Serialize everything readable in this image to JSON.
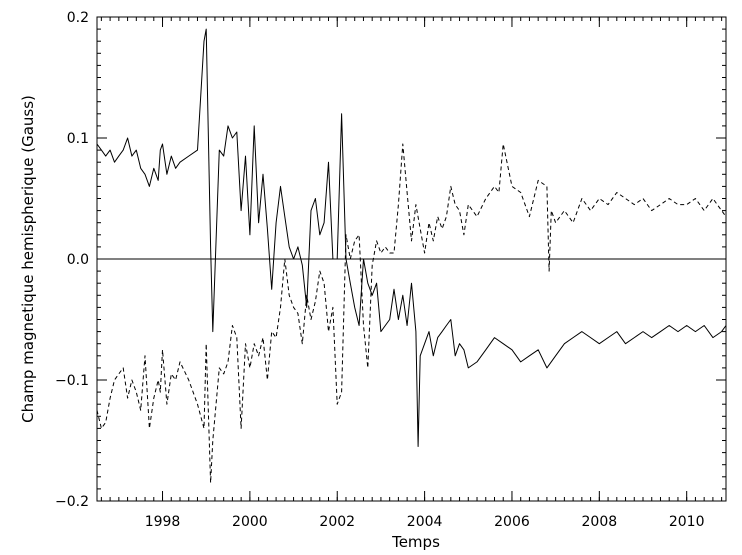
{
  "chart_data": {
    "type": "line",
    "title": "",
    "xlabel": "Temps",
    "ylabel": "Champ magnetique hemispherique (Gauss)",
    "xlim": [
      1996.5,
      2010.9
    ],
    "ylim": [
      -0.2,
      0.2
    ],
    "x_ticks": [
      1998,
      2000,
      2002,
      2004,
      2006,
      2008,
      2010
    ],
    "x_tick_labels": [
      "1998",
      "2000",
      "2002",
      "2004",
      "2006",
      "2008",
      "2010"
    ],
    "y_ticks": [
      -0.2,
      -0.1,
      0.0,
      0.1,
      0.2
    ],
    "y_tick_labels": [
      "−0.2",
      "−0.1",
      "0.0",
      "0.1",
      "0.2"
    ],
    "zero_line": 0.0,
    "legend": "none",
    "grid": false,
    "series": [
      {
        "style": "solid",
        "x": [
          1996.5,
          1996.6,
          1996.7,
          1996.8,
          1996.9,
          1997.0,
          1997.1,
          1997.2,
          1997.3,
          1997.4,
          1997.5,
          1997.6,
          1997.7,
          1997.8,
          1997.9,
          1997.95,
          1998.0,
          1998.1,
          1998.2,
          1998.3,
          1998.4,
          1998.6,
          1998.8,
          1998.95,
          1999.0,
          1999.1,
          1999.15,
          1999.3,
          1999.4,
          1999.5,
          1999.6,
          1999.7,
          1999.8,
          1999.9,
          2000.0,
          2000.1,
          2000.2,
          2000.3,
          2000.4,
          2000.5,
          2000.6,
          2000.7,
          2000.8,
          2000.9,
          2001.0,
          2001.1,
          2001.2,
          2001.3,
          2001.4,
          2001.5,
          2001.6,
          2001.7,
          2001.8,
          2001.9,
          2002.0,
          2002.1,
          2002.2,
          2002.3,
          2002.4,
          2002.5,
          2002.6,
          2002.7,
          2002.8,
          2002.9,
          2003.0,
          2003.1,
          2003.2,
          2003.3,
          2003.4,
          2003.5,
          2003.6,
          2003.7,
          2003.8,
          2003.85,
          2003.9,
          2004.0,
          2004.1,
          2004.2,
          2004.3,
          2004.4,
          2004.5,
          2004.6,
          2004.7,
          2004.8,
          2004.9,
          2005.0,
          2005.2,
          2005.4,
          2005.6,
          2005.8,
          2006.0,
          2006.2,
          2006.4,
          2006.6,
          2006.8,
          2007.0,
          2007.2,
          2007.4,
          2007.6,
          2007.8,
          2008.0,
          2008.2,
          2008.4,
          2008.6,
          2008.8,
          2009.0,
          2009.2,
          2009.4,
          2009.6,
          2009.8,
          2010.0,
          2010.2,
          2010.4,
          2010.6,
          2010.8,
          2010.9
        ],
        "values": [
          0.095,
          0.09,
          0.085,
          0.09,
          0.08,
          0.085,
          0.09,
          0.1,
          0.085,
          0.09,
          0.075,
          0.07,
          0.06,
          0.075,
          0.065,
          0.09,
          0.095,
          0.07,
          0.085,
          0.075,
          0.08,
          0.085,
          0.09,
          0.18,
          0.19,
          0.01,
          -0.06,
          0.09,
          0.085,
          0.11,
          0.1,
          0.105,
          0.04,
          0.085,
          0.02,
          0.11,
          0.03,
          0.07,
          0.025,
          -0.025,
          0.03,
          0.06,
          0.035,
          0.01,
          0.0,
          0.01,
          -0.005,
          -0.04,
          0.04,
          0.05,
          0.02,
          0.03,
          0.08,
          0.0,
          0.0,
          0.12,
          0.0,
          -0.02,
          -0.04,
          -0.055,
          0.0,
          -0.02,
          -0.03,
          -0.02,
          -0.06,
          -0.055,
          -0.05,
          -0.025,
          -0.05,
          -0.03,
          -0.055,
          -0.02,
          -0.06,
          -0.155,
          -0.08,
          -0.07,
          -0.06,
          -0.08,
          -0.065,
          -0.06,
          -0.055,
          -0.05,
          -0.08,
          -0.07,
          -0.075,
          -0.09,
          -0.085,
          -0.075,
          -0.065,
          -0.07,
          -0.075,
          -0.085,
          -0.08,
          -0.075,
          -0.09,
          -0.08,
          -0.07,
          -0.065,
          -0.06,
          -0.065,
          -0.07,
          -0.065,
          -0.06,
          -0.07,
          -0.065,
          -0.06,
          -0.065,
          -0.06,
          -0.055,
          -0.06,
          -0.055,
          -0.06,
          -0.055,
          -0.065,
          -0.06,
          -0.055
        ]
      },
      {
        "style": "dashed",
        "x": [
          1996.5,
          1996.6,
          1996.7,
          1996.8,
          1996.9,
          1997.0,
          1997.1,
          1997.2,
          1997.3,
          1997.4,
          1997.5,
          1997.6,
          1997.7,
          1997.8,
          1997.9,
          1997.95,
          1998.0,
          1998.1,
          1998.2,
          1998.3,
          1998.4,
          1998.6,
          1998.8,
          1998.95,
          1999.0,
          1999.1,
          1999.15,
          1999.3,
          1999.4,
          1999.5,
          1999.6,
          1999.7,
          1999.8,
          1999.9,
          2000.0,
          2000.1,
          2000.2,
          2000.3,
          2000.4,
          2000.5,
          2000.6,
          2000.7,
          2000.8,
          2000.9,
          2001.0,
          2001.1,
          2001.2,
          2001.3,
          2001.4,
          2001.5,
          2001.6,
          2001.7,
          2001.8,
          2001.9,
          2002.0,
          2002.1,
          2002.2,
          2002.3,
          2002.4,
          2002.5,
          2002.6,
          2002.7,
          2002.8,
          2002.9,
          2003.0,
          2003.1,
          2003.2,
          2003.3,
          2003.4,
          2003.5,
          2003.6,
          2003.7,
          2003.8,
          2003.9,
          2004.0,
          2004.1,
          2004.2,
          2004.3,
          2004.4,
          2004.5,
          2004.6,
          2004.7,
          2004.8,
          2004.9,
          2005.0,
          2005.2,
          2005.4,
          2005.6,
          2005.7,
          2005.8,
          2006.0,
          2006.2,
          2006.4,
          2006.6,
          2006.8,
          2006.85,
          2006.9,
          2007.0,
          2007.2,
          2007.4,
          2007.6,
          2007.8,
          2008.0,
          2008.2,
          2008.4,
          2008.6,
          2008.8,
          2009.0,
          2009.2,
          2009.4,
          2009.6,
          2009.8,
          2010.0,
          2010.2,
          2010.4,
          2010.6,
          2010.8,
          2010.9
        ],
        "values": [
          -0.125,
          -0.14,
          -0.135,
          -0.115,
          -0.1,
          -0.095,
          -0.09,
          -0.115,
          -0.1,
          -0.11,
          -0.125,
          -0.08,
          -0.14,
          -0.115,
          -0.1,
          -0.11,
          -0.075,
          -0.12,
          -0.095,
          -0.1,
          -0.085,
          -0.1,
          -0.12,
          -0.14,
          -0.07,
          -0.185,
          -0.15,
          -0.09,
          -0.095,
          -0.085,
          -0.055,
          -0.065,
          -0.14,
          -0.07,
          -0.09,
          -0.07,
          -0.08,
          -0.065,
          -0.1,
          -0.06,
          -0.065,
          -0.04,
          0.0,
          -0.03,
          -0.04,
          -0.045,
          -0.07,
          -0.03,
          -0.05,
          -0.035,
          -0.01,
          -0.02,
          -0.06,
          -0.04,
          -0.12,
          -0.11,
          0.02,
          0.0,
          0.015,
          0.02,
          -0.055,
          -0.09,
          -0.005,
          0.015,
          0.005,
          0.01,
          0.005,
          0.005,
          0.045,
          0.095,
          0.055,
          0.015,
          0.045,
          0.025,
          0.005,
          0.03,
          0.015,
          0.035,
          0.025,
          0.035,
          0.06,
          0.045,
          0.04,
          0.02,
          0.045,
          0.035,
          0.05,
          0.06,
          0.055,
          0.095,
          0.06,
          0.055,
          0.035,
          0.065,
          0.06,
          -0.01,
          0.04,
          0.03,
          0.04,
          0.03,
          0.05,
          0.04,
          0.05,
          0.045,
          0.055,
          0.05,
          0.045,
          0.05,
          0.04,
          0.045,
          0.05,
          0.045,
          0.045,
          0.05,
          0.04,
          0.05,
          0.04,
          0.035
        ]
      }
    ]
  }
}
